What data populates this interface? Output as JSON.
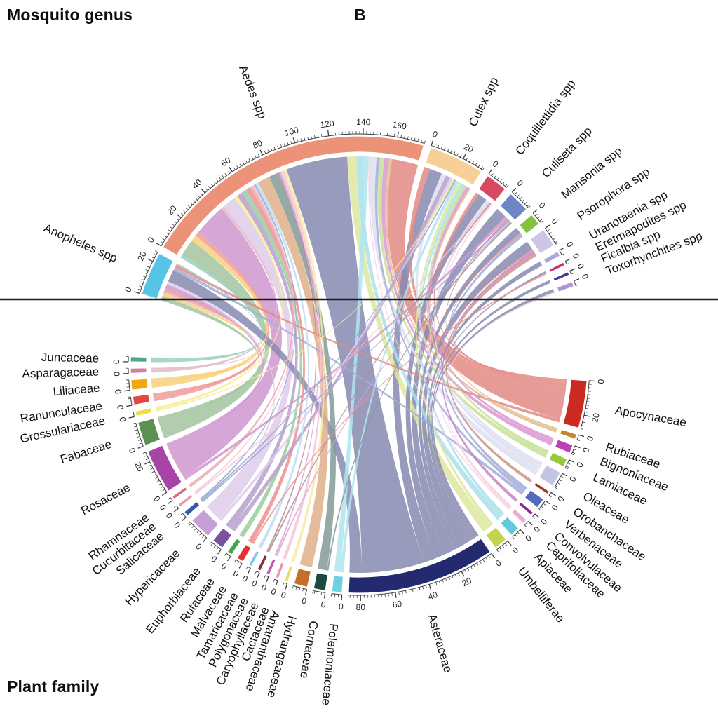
{
  "page": {
    "top_left_label": "Mosquito genus",
    "panel_label": "B",
    "bottom_left_label": "Plant family"
  },
  "chart_data": {
    "type": "chord",
    "title": "Chord diagram of mosquito genera (top half) and visited plant families (bottom half)",
    "layout": {
      "top_half": "mosquito genera",
      "bottom_half": "plant families",
      "tick_label_interval": 20,
      "minor_tick_step": 2,
      "divider_line": true,
      "legend_position": "none"
    },
    "mosquito_genera": [
      {
        "name": "Anopheles spp",
        "color": "#56c4e6",
        "value": 26
      },
      {
        "name": "Aedes spp",
        "color": "#ec9278",
        "value": 176
      },
      {
        "name": "Culex spp",
        "color": "#f6d096",
        "value": 33
      },
      {
        "name": "Coquillettidia spp",
        "color": "#d84a62",
        "value": 13
      },
      {
        "name": "Culiseta spp",
        "color": "#6d86c6",
        "value": 13
      },
      {
        "name": "Mansonia spp",
        "color": "#84c341",
        "value": 7
      },
      {
        "name": "Psorophora spp",
        "color": "#cfc3e8",
        "value": 11
      },
      {
        "name": "Uranotaenia spp",
        "color": "#a8a8da",
        "value": 3
      },
      {
        "name": "Eretmapodites spp",
        "color": "#ce2f70",
        "value": 2
      },
      {
        "name": "Ficalbia spp",
        "color": "#473893",
        "value": 2
      },
      {
        "name": "Toxorhynchites spp",
        "color": "#b095d2",
        "value": 3
      }
    ],
    "plant_families": [
      {
        "name": "Juncaceae",
        "color": "#49a88e",
        "value": 3
      },
      {
        "name": "Asparagaceae",
        "color": "#c9849f",
        "value": 3
      },
      {
        "name": "Liliaceae",
        "color": "#f2a90d",
        "value": 6
      },
      {
        "name": "Ranunculaceae",
        "color": "#e04a45",
        "value": 5
      },
      {
        "name": "Grossulariaceae",
        "color": "#f2df3e",
        "value": 3
      },
      {
        "name": "Fabaceae",
        "color": "#5c9153",
        "value": 14
      },
      {
        "name": "Rosaceae",
        "color": "#a844a8",
        "value": 26
      },
      {
        "name": "Rhamnaceae",
        "color": "#d96a7a",
        "value": 2
      },
      {
        "name": "Cucurbitaceae",
        "color": "#e89bb5",
        "value": 2
      },
      {
        "name": "Salicaceae",
        "color": "#3a57a8",
        "value": 3
      },
      {
        "name": "Hypericaceae",
        "color": "#c5a0d8",
        "value": 13
      },
      {
        "name": "Euphorbiaceae",
        "color": "#7a52a0",
        "value": 7
      },
      {
        "name": "Rutaceae",
        "color": "#3fa84a",
        "value": 3
      },
      {
        "name": "Malvaceae",
        "color": "#e03333",
        "value": 4
      },
      {
        "name": "Tamaricaceae",
        "color": "#85c2ea",
        "value": 2
      },
      {
        "name": "Polygonaceae",
        "color": "#7a2e4a",
        "value": 2
      },
      {
        "name": "Caryophyllaceae",
        "color": "#c258b8",
        "value": 2
      },
      {
        "name": "Cactaceae",
        "color": "#ef93b8",
        "value": 2
      },
      {
        "name": "Amaranthaceae",
        "color": "#f2d85a",
        "value": 2
      },
      {
        "name": "Hydrangeaceae",
        "color": "#c66f28",
        "value": 8
      },
      {
        "name": "Cornaceae",
        "color": "#1d4a40",
        "value": 7
      },
      {
        "name": "Polemoniaceae",
        "color": "#6fd0e0",
        "value": 6
      },
      {
        "name": "Asteraceae",
        "color": "#232a70",
        "value": 87
      },
      {
        "name": "Umbelliferae",
        "color": "#c3d44e",
        "value": 8
      },
      {
        "name": "Apiaceae",
        "color": "#62c8da",
        "value": 6
      },
      {
        "name": "Caprifoliaceae",
        "color": "#f0aacb",
        "value": 3
      },
      {
        "name": "Convolvulaceae",
        "color": "#93238f",
        "value": 2
      },
      {
        "name": "Verbenaceae",
        "color": "#5568bb",
        "value": 6
      },
      {
        "name": "Orobanchaceae",
        "color": "#a23a24",
        "value": 2
      },
      {
        "name": "Oleaceae",
        "color": "#c3c5e4",
        "value": 9
      },
      {
        "name": "Lamiaceae",
        "color": "#97c83e",
        "value": 5
      },
      {
        "name": "Bignoniaceae",
        "color": "#bb42b0",
        "value": 5
      },
      {
        "name": "Rubiaceae",
        "color": "#c8862d",
        "value": 3
      },
      {
        "name": "Apocynaceae",
        "color": "#cc2a20",
        "value": 28
      }
    ],
    "ribbons": [
      {
        "plant": "Fabaceae",
        "mosquito": "Anopheles spp",
        "value": 3
      },
      {
        "plant": "Liliaceae",
        "mosquito": "Anopheles spp",
        "value": 2
      },
      {
        "plant": "Asparagaceae",
        "mosquito": "Anopheles spp",
        "value": 1
      },
      {
        "plant": "Ranunculaceae",
        "mosquito": "Anopheles spp",
        "value": 2
      },
      {
        "plant": "Rosaceae",
        "mosquito": "Anopheles spp",
        "value": 3
      },
      {
        "plant": "Hypericaceae",
        "mosquito": "Anopheles spp",
        "value": 2
      },
      {
        "plant": "Asteraceae",
        "mosquito": "Anopheles spp",
        "value": 8
      },
      {
        "plant": "Verbenaceae",
        "mosquito": "Anopheles spp",
        "value": 2
      },
      {
        "plant": "Apocynaceae",
        "mosquito": "Anopheles spp",
        "value": 2
      },
      {
        "plant": "Juncaceae",
        "mosquito": "Anopheles spp",
        "value": 1
      },
      {
        "plant": "Juncaceae",
        "mosquito": "Aedes spp",
        "value": 2
      },
      {
        "plant": "Fabaceae",
        "mosquito": "Aedes spp",
        "value": 11
      },
      {
        "plant": "Liliaceae",
        "mosquito": "Aedes spp",
        "value": 4
      },
      {
        "plant": "Ranunculaceae",
        "mosquito": "Aedes spp",
        "value": 3
      },
      {
        "plant": "Rosaceae",
        "mosquito": "Aedes spp",
        "value": 21
      },
      {
        "plant": "Asparagaceae",
        "mosquito": "Aedes spp",
        "value": 2
      },
      {
        "plant": "Hypericaceae",
        "mosquito": "Aedes spp",
        "value": 9
      },
      {
        "plant": "Grossulariaceae",
        "mosquito": "Aedes spp",
        "value": 2
      },
      {
        "plant": "Euphorbiaceae",
        "mosquito": "Aedes spp",
        "value": 4
      },
      {
        "plant": "Rutaceae",
        "mosquito": "Aedes spp",
        "value": 3
      },
      {
        "plant": "Malvaceae",
        "mosquito": "Aedes spp",
        "value": 3
      },
      {
        "plant": "Rhamnaceae",
        "mosquito": "Aedes spp",
        "value": 2
      },
      {
        "plant": "Cucurbitaceae",
        "mosquito": "Aedes spp",
        "value": 1
      },
      {
        "plant": "Salicaceae",
        "mosquito": "Aedes spp",
        "value": 1
      },
      {
        "plant": "Tamaricaceae",
        "mosquito": "Aedes spp",
        "value": 2
      },
      {
        "plant": "Hydrangeaceae",
        "mosquito": "Aedes spp",
        "value": 8
      },
      {
        "plant": "Cornaceae",
        "mosquito": "Aedes spp",
        "value": 6
      },
      {
        "plant": "Polygonaceae",
        "mosquito": "Aedes spp",
        "value": 1
      },
      {
        "plant": "Caryophyllaceae",
        "mosquito": "Aedes spp",
        "value": 1
      },
      {
        "plant": "Cactaceae",
        "mosquito": "Aedes spp",
        "value": 2
      },
      {
        "plant": "Amaranthaceae",
        "mosquito": "Aedes spp",
        "value": 2
      },
      {
        "plant": "Asteraceae",
        "mosquito": "Aedes spp",
        "value": 40
      },
      {
        "plant": "Umbelliferae",
        "mosquito": "Aedes spp",
        "value": 6
      },
      {
        "plant": "Apiaceae",
        "mosquito": "Aedes spp",
        "value": 4
      },
      {
        "plant": "Polemoniaceae",
        "mosquito": "Aedes spp",
        "value": 4
      },
      {
        "plant": "Caprifoliaceae",
        "mosquito": "Aedes spp",
        "value": 1
      },
      {
        "plant": "Oleaceae",
        "mosquito": "Aedes spp",
        "value": 4
      },
      {
        "plant": "Verbenaceae",
        "mosquito": "Aedes spp",
        "value": 2
      },
      {
        "plant": "Lamiaceae",
        "mosquito": "Aedes spp",
        "value": 3
      },
      {
        "plant": "Bignoniaceae",
        "mosquito": "Aedes spp",
        "value": 3
      },
      {
        "plant": "Rubiaceae",
        "mosquito": "Aedes spp",
        "value": 2
      },
      {
        "plant": "Apocynaceae",
        "mosquito": "Aedes spp",
        "value": 17
      },
      {
        "plant": "Apocynaceae",
        "mosquito": "Culex spp",
        "value": 4
      },
      {
        "plant": "Asteraceae",
        "mosquito": "Culex spp",
        "value": 8
      },
      {
        "plant": "Oleaceae",
        "mosquito": "Culex spp",
        "value": 3
      },
      {
        "plant": "Euphorbiaceae",
        "mosquito": "Culex spp",
        "value": 3
      },
      {
        "plant": "Hypericaceae",
        "mosquito": "Culex spp",
        "value": 2
      },
      {
        "plant": "Grossulariaceae",
        "mosquito": "Culex spp",
        "value": 1
      },
      {
        "plant": "Salicaceae",
        "mosquito": "Culex spp",
        "value": 1
      },
      {
        "plant": "Polemoniaceae",
        "mosquito": "Culex spp",
        "value": 2
      },
      {
        "plant": "Umbelliferae",
        "mosquito": "Culex spp",
        "value": 2
      },
      {
        "plant": "Apiaceae",
        "mosquito": "Culex spp",
        "value": 2
      },
      {
        "plant": "Lamiaceae",
        "mosquito": "Culex spp",
        "value": 2
      },
      {
        "plant": "Bignoniaceae",
        "mosquito": "Culex spp",
        "value": 2
      },
      {
        "plant": "Rubiaceae",
        "mosquito": "Culex spp",
        "value": 1
      },
      {
        "plant": "Apocynaceae",
        "mosquito": "Coquillettidia spp",
        "value": 2
      },
      {
        "plant": "Asteraceae",
        "mosquito": "Coquillettidia spp",
        "value": 6
      },
      {
        "plant": "Oleaceae",
        "mosquito": "Coquillettidia spp",
        "value": 2
      },
      {
        "plant": "Cucurbitaceae",
        "mosquito": "Coquillettidia spp",
        "value": 1
      },
      {
        "plant": "Polygonaceae",
        "mosquito": "Coquillettidia spp",
        "value": 1
      },
      {
        "plant": "Caprifoliaceae",
        "mosquito": "Coquillettidia spp",
        "value": 1
      },
      {
        "plant": "Asteraceae",
        "mosquito": "Culiseta spp",
        "value": 7
      },
      {
        "plant": "Rosaceae",
        "mosquito": "Culiseta spp",
        "value": 2
      },
      {
        "plant": "Apocynaceae",
        "mosquito": "Culiseta spp",
        "value": 1
      },
      {
        "plant": "Salicaceae",
        "mosquito": "Culiseta spp",
        "value": 1
      },
      {
        "plant": "Caryophyllaceae",
        "mosquito": "Culiseta spp",
        "value": 1
      },
      {
        "plant": "Cornaceae",
        "mosquito": "Culiseta spp",
        "value": 1
      },
      {
        "plant": "Asteraceae",
        "mosquito": "Mansonia spp",
        "value": 4
      },
      {
        "plant": "Apocynaceae",
        "mosquito": "Mansonia spp",
        "value": 1
      },
      {
        "plant": "Verbenaceae",
        "mosquito": "Mansonia spp",
        "value": 2
      },
      {
        "plant": "Asteraceae",
        "mosquito": "Psorophora spp",
        "value": 6
      },
      {
        "plant": "Apocynaceae",
        "mosquito": "Psorophora spp",
        "value": 1
      },
      {
        "plant": "Convolvulaceae",
        "mosquito": "Psorophora spp",
        "value": 2
      },
      {
        "plant": "Orobanchaceae",
        "mosquito": "Psorophora spp",
        "value": 2
      },
      {
        "plant": "Asteraceae",
        "mosquito": "Uranotaenia spp",
        "value": 3
      },
      {
        "plant": "Asteraceae",
        "mosquito": "Eretmapodites spp",
        "value": 1
      },
      {
        "plant": "Malvaceae",
        "mosquito": "Eretmapodites spp",
        "value": 1
      },
      {
        "plant": "Asteraceae",
        "mosquito": "Ficalbia spp",
        "value": 2
      },
      {
        "plant": "Asteraceae",
        "mosquito": "Toxorhynchites spp",
        "value": 2
      },
      {
        "plant": "Caprifoliaceae",
        "mosquito": "Toxorhynchites spp",
        "value": 1
      }
    ]
  }
}
